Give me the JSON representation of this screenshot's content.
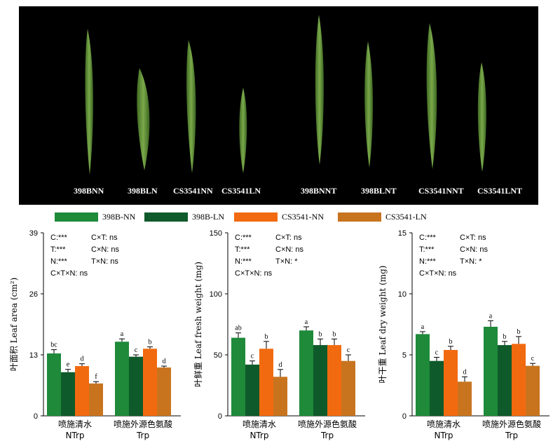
{
  "photo": {
    "labels": [
      "398BNN",
      "398BLN",
      "CS3541NN",
      "CS3541LN",
      "398BNNT",
      "398BLNT",
      "CS3541NNT",
      "CS3541LNT"
    ]
  },
  "legend": [
    {
      "name": "398B-NN",
      "color": "#1e8a3a"
    },
    {
      "name": "398B-LN",
      "color": "#0f5a2a"
    },
    {
      "name": "CS3541-NN",
      "color": "#f26a10"
    },
    {
      "name": "CS3541-LN",
      "color": "#c8741f"
    }
  ],
  "chart_data": [
    {
      "type": "bar",
      "ylabel": "叶面积 Leaf area (cm²)",
      "ylim": [
        0,
        39
      ],
      "yticks": [
        0,
        13,
        26,
        39
      ],
      "categories": [
        "喷施清水",
        "喷施外源色氨酸"
      ],
      "category_sub": [
        "NTrp",
        "Trp"
      ],
      "series": [
        {
          "name": "398B-NN",
          "values": [
            13.3,
            15.8
          ],
          "errors": [
            0.8,
            0.6
          ],
          "letters": [
            "bc",
            "a"
          ]
        },
        {
          "name": "398B-LN",
          "values": [
            9.3,
            12.6
          ],
          "errors": [
            0.6,
            0.4
          ],
          "letters": [
            "e",
            "c"
          ]
        },
        {
          "name": "CS3541-NN",
          "values": [
            10.6,
            14.3
          ],
          "errors": [
            0.5,
            0.4
          ],
          "letters": [
            "d",
            "b"
          ]
        },
        {
          "name": "CS3541-LN",
          "values": [
            6.9,
            10.3
          ],
          "errors": [
            0.4,
            0.3
          ],
          "letters": [
            "f",
            "d"
          ]
        }
      ],
      "stats": [
        "C:***",
        "C×T: ns",
        "T:***",
        "C×N: ns",
        "N:***",
        "T×N: ns",
        "C×T×N: ns"
      ]
    },
    {
      "type": "bar",
      "ylabel": "叶鲜重 Leaf fresh weight (mg)",
      "ylim": [
        0,
        150
      ],
      "yticks": [
        0,
        50,
        100,
        150
      ],
      "categories": [
        "喷施清水",
        "喷施外源色氨酸"
      ],
      "category_sub": [
        "NTrp",
        "Trp"
      ],
      "series": [
        {
          "name": "398B-NN",
          "values": [
            64,
            70
          ],
          "errors": [
            4,
            3
          ],
          "letters": [
            "ab",
            "a"
          ]
        },
        {
          "name": "398B-LN",
          "values": [
            42,
            58
          ],
          "errors": [
            3,
            5
          ],
          "letters": [
            "c",
            "b"
          ]
        },
        {
          "name": "CS3541-NN",
          "values": [
            55,
            58
          ],
          "errors": [
            6,
            5
          ],
          "letters": [
            "b",
            "b"
          ]
        },
        {
          "name": "CS3541-LN",
          "values": [
            32,
            45
          ],
          "errors": [
            6,
            5
          ],
          "letters": [
            "d",
            "c"
          ]
        }
      ],
      "stats": [
        "C:***",
        "C×T: ns",
        "T:***",
        "C×N: ns",
        "N:***",
        "T×N: *",
        "C×T×N: ns"
      ]
    },
    {
      "type": "bar",
      "ylabel": "叶干重 Leaf dry weight (mg)",
      "ylim": [
        0,
        15
      ],
      "yticks": [
        0,
        5,
        10,
        15
      ],
      "categories": [
        "喷施清水",
        "喷施外源色氨酸"
      ],
      "category_sub": [
        "NTrp",
        "Trp"
      ],
      "series": [
        {
          "name": "398B-NN",
          "values": [
            6.7,
            7.3
          ],
          "errors": [
            0.2,
            0.5
          ],
          "letters": [
            "a",
            "a"
          ]
        },
        {
          "name": "398B-LN",
          "values": [
            4.5,
            5.8
          ],
          "errors": [
            0.3,
            0.3
          ],
          "letters": [
            "c",
            "b"
          ]
        },
        {
          "name": "CS3541-NN",
          "values": [
            5.4,
            5.9
          ],
          "errors": [
            0.3,
            0.6
          ],
          "letters": [
            "b",
            "b"
          ]
        },
        {
          "name": "CS3541-LN",
          "values": [
            2.8,
            4.1
          ],
          "errors": [
            0.4,
            0.2
          ],
          "letters": [
            "d",
            "c"
          ]
        }
      ],
      "stats": [
        "C:***",
        "C×T: ns",
        "T:***",
        "C×N: ns",
        "N:***",
        "T×N: *",
        "C×T×N: ns"
      ]
    }
  ]
}
